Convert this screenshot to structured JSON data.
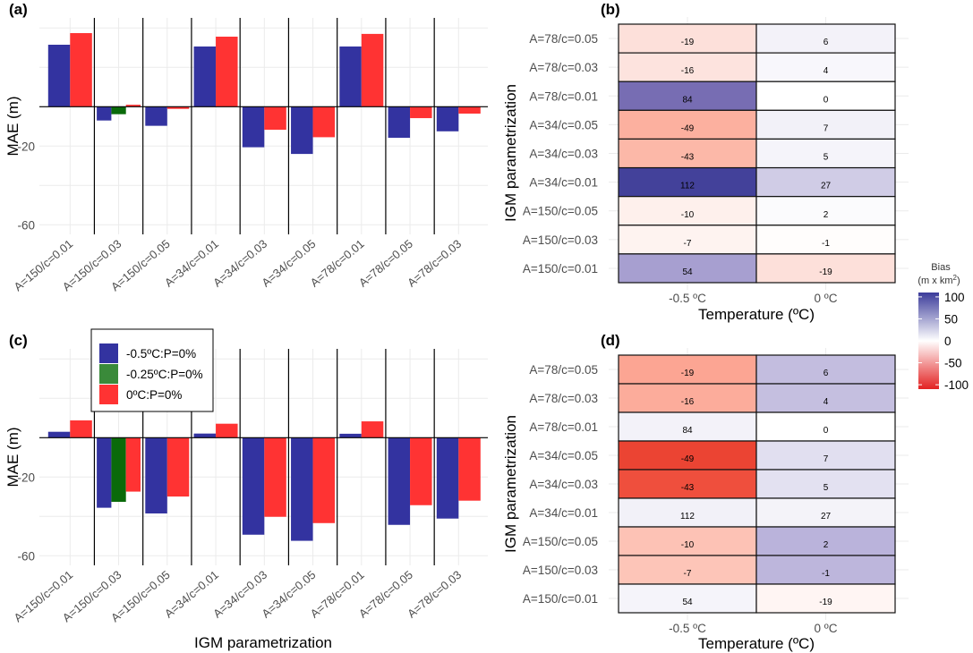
{
  "chart_data": [
    {
      "id": "a",
      "panel_label": "(a)",
      "type": "bar",
      "ylabel": "MAE (m)",
      "xlabel": "",
      "ylim": [
        -62,
        45
      ],
      "yticks": [
        -20,
        -60
      ],
      "ygrid": [
        40,
        20,
        0,
        -20,
        -40,
        -60
      ],
      "categories": [
        "A=150/c=0.01",
        "A=150/c=0.03",
        "A=150/c=0.05",
        "A=34/c=0.01",
        "A=34/c=0.03",
        "A=34/c=0.05",
        "A=78/c=0.01",
        "A=78/c=0.05",
        "A=78/c=0.03"
      ],
      "series": [
        {
          "name": "-0.5ºC:P=0%",
          "color": "#3333a0",
          "values": [
            31.5,
            -7.0,
            -9.7,
            30.6,
            -20.6,
            -24.0,
            30.6,
            -15.8,
            -12.5
          ]
        },
        {
          "name": "-0.25ºC:P=0%",
          "color": "#0a6a0a",
          "values": [
            null,
            -3.8,
            null,
            null,
            null,
            null,
            null,
            null,
            null
          ]
        },
        {
          "name": "0ºC:P=0%",
          "color": "#ff3333",
          "values": [
            37.4,
            1.0,
            -1.1,
            35.6,
            -11.7,
            -15.5,
            37.0,
            -5.8,
            -3.5
          ]
        }
      ]
    },
    {
      "id": "c",
      "panel_label": "(c)",
      "type": "bar",
      "ylabel": "MAE (m)",
      "xlabel": "IGM parametrization",
      "ylim": [
        -62,
        45
      ],
      "yticks": [
        -20,
        -60
      ],
      "ygrid": [
        40,
        20,
        0,
        -20,
        -40,
        -60
      ],
      "categories": [
        "A=150/c=0.01",
        "A=150/c=0.03",
        "A=150/c=0.05",
        "A=34/c=0.01",
        "A=34/c=0.03",
        "A=34/c=0.05",
        "A=78/c=0.01",
        "A=78/c=0.05",
        "A=78/c=0.03"
      ],
      "series": [
        {
          "name": "-0.5ºC:P=0%",
          "color": "#3333a0",
          "values": [
            3.0,
            -35.6,
            -38.5,
            2.1,
            -49.3,
            -52.4,
            2.0,
            -44.3,
            -41.1
          ]
        },
        {
          "name": "-0.25ºC:P=0%",
          "color": "#0a6a0a",
          "values": [
            null,
            -32.6,
            null,
            null,
            null,
            null,
            null,
            null,
            null
          ]
        },
        {
          "name": "0ºC:P=0%",
          "color": "#ff3333",
          "values": [
            8.8,
            -27.4,
            -29.9,
            7.1,
            -40.2,
            -43.4,
            8.3,
            -34.3,
            -32.0
          ]
        }
      ],
      "legend": {
        "placement": "top-left",
        "entries": [
          {
            "label": "-0.5ºC:P=0%",
            "color": "#3333a0"
          },
          {
            "label": "-0.25ºC:P=0%",
            "color": "#3a8a3a"
          },
          {
            "label": "0ºC:P=0%",
            "color": "#ff3333"
          }
        ]
      }
    },
    {
      "id": "b",
      "panel_label": "(b)",
      "type": "heatmap",
      "xlabel": "Temperature (ºC)",
      "ylabel": "IGM parametrization",
      "x": [
        "-0.5 ºC",
        "0 ºC"
      ],
      "y": [
        "A=78/c=0.05",
        "A=78/c=0.03",
        "A=78/c=0.01",
        "A=34/c=0.05",
        "A=34/c=0.03",
        "A=34/c=0.01",
        "A=150/c=0.05",
        "A=150/c=0.03",
        "A=150/c=0.01"
      ],
      "labels": [
        [
          -19,
          6
        ],
        [
          -16,
          4
        ],
        [
          84,
          0
        ],
        [
          -49,
          7
        ],
        [
          -43,
          5
        ],
        [
          112,
          27
        ],
        [
          -10,
          2
        ],
        [
          -7,
          -1
        ],
        [
          54,
          -19
        ]
      ],
      "fill_colors": [
        [
          "#fde0da",
          "#f3f2f9"
        ],
        [
          "#fde3de",
          "#f8f7fc"
        ],
        [
          "#776db3",
          "#ffffff"
        ],
        [
          "#fcb09f",
          "#f2f1f8"
        ],
        [
          "#fcb8a8",
          "#f5f4fa"
        ],
        [
          "#43419a",
          "#d0cce6"
        ],
        [
          "#fef0ec",
          "#fbfbfd"
        ],
        [
          "#fef3f0",
          "#fffdfc"
        ],
        [
          "#a79fd0",
          "#fde0da"
        ]
      ]
    },
    {
      "id": "d",
      "panel_label": "(d)",
      "type": "heatmap",
      "xlabel": "Temperature (ºC)",
      "ylabel": "IGM parametrization",
      "x": [
        "-0.5 ºC",
        "0 ºC"
      ],
      "y": [
        "A=78/c=0.05",
        "A=78/c=0.03",
        "A=78/c=0.01",
        "A=34/c=0.05",
        "A=34/c=0.03",
        "A=34/c=0.01",
        "A=150/c=0.05",
        "A=150/c=0.03",
        "A=150/c=0.01"
      ],
      "labels": [
        [
          -19,
          6
        ],
        [
          -16,
          4
        ],
        [
          84,
          0
        ],
        [
          -49,
          7
        ],
        [
          -43,
          5
        ],
        [
          112,
          27
        ],
        [
          -10,
          2
        ],
        [
          -7,
          -1
        ],
        [
          54,
          -19
        ]
      ],
      "fill_colors": [
        [
          "#fca593",
          "#c3bddf"
        ],
        [
          "#fcac9b",
          "#c5bfe0"
        ],
        [
          "#f3f2f9",
          "#ffffff"
        ],
        [
          "#eb4433",
          "#e1dff0"
        ],
        [
          "#ef4f3d",
          "#e3e1f1"
        ],
        [
          "#f2f1f8",
          "#f4f3f9"
        ],
        [
          "#fdc2b5",
          "#bab3db"
        ],
        [
          "#fdc5b8",
          "#bdb6dc"
        ],
        [
          "#f5f4fa",
          "#fff5f3"
        ]
      ]
    }
  ],
  "colorbar": {
    "title_line1": "Bias",
    "title_line2": "(m x km",
    "title_sup": "2",
    "title_close": ")",
    "range": [
      -110,
      110
    ],
    "ticks": [
      100,
      50,
      0,
      -50,
      -100
    ],
    "low_color": "#e32222",
    "mid_color": "#ffffff",
    "high_color": "#3b3b9a"
  }
}
